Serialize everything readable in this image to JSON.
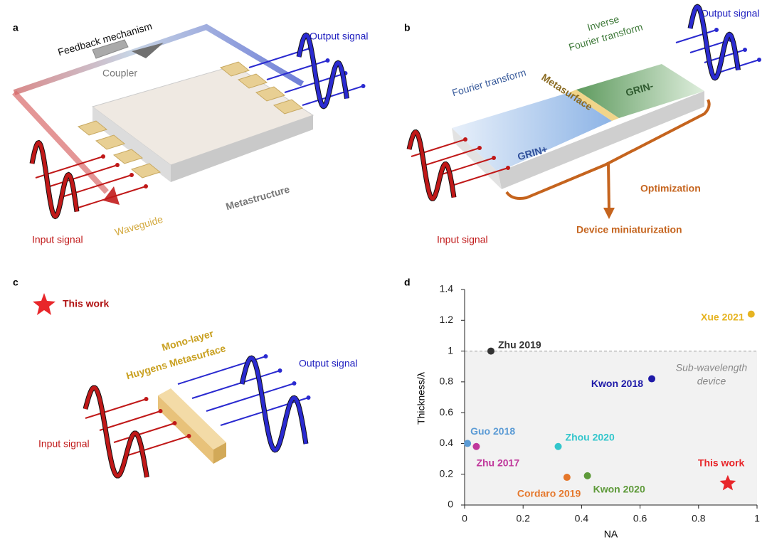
{
  "panels": {
    "a": {
      "label": "a",
      "feedback": "Feedback mechanism",
      "coupler": "Coupler",
      "output": "Output signal",
      "waveguide": "Waveguide",
      "metastructure": "Metastructure",
      "input": "Input signal"
    },
    "b": {
      "label": "b",
      "fourier": "Fourier transform",
      "inverse": [
        "Inverse",
        "Fourier transform"
      ],
      "metasurface": "Metasurface",
      "grin_plus": "GRIN+",
      "grin_minus": "GRIN-",
      "output": "Output signal",
      "optimization": "Optimization",
      "miniaturization": "Device miniaturization",
      "input": "Input signal"
    },
    "c": {
      "label": "c",
      "legend": "This work",
      "device": [
        "Mono-layer",
        "Huygens Metasurface"
      ],
      "output": "Output signal",
      "input": "Input signal"
    },
    "d": {
      "label": "d"
    }
  },
  "chart_data": {
    "type": "scatter",
    "xlabel": "NA",
    "ylabel": "Thickness/λ",
    "xlim": [
      0,
      1
    ],
    "xticks": [
      0,
      0.2,
      0.4,
      0.6,
      0.8,
      1
    ],
    "ylim": [
      0,
      1.4
    ],
    "yticks": [
      0,
      0.2,
      0.4,
      0.6,
      0.8,
      1,
      1.2,
      1.4
    ],
    "reference_line": 1,
    "annotation": [
      "Sub-wavelength",
      "device"
    ],
    "series": [
      {
        "name": "Xue 2021",
        "color": "#e6b422",
        "x": [
          0.98
        ],
        "y": [
          1.24
        ]
      },
      {
        "name": "Zhu 2019",
        "color": "#333333",
        "x": [
          0.09
        ],
        "y": [
          1.0
        ]
      },
      {
        "name": "Kwon 2018",
        "color": "#1f1aa8",
        "x": [
          0.64
        ],
        "y": [
          0.82
        ]
      },
      {
        "name": "Guo 2018",
        "color": "#5b9bd5",
        "x": [
          0.01
        ],
        "y": [
          0.4
        ]
      },
      {
        "name": "Zhu 2017",
        "color": "#c0389c",
        "x": [
          0.04
        ],
        "y": [
          0.38
        ]
      },
      {
        "name": "Zhou 2020",
        "color": "#33c6cc",
        "x": [
          0.32
        ],
        "y": [
          0.38
        ]
      },
      {
        "name": "Cordaro 2019",
        "color": "#e5772b",
        "x": [
          0.35
        ],
        "y": [
          0.18
        ]
      },
      {
        "name": "Kwon 2020",
        "color": "#5e9a3a",
        "x": [
          0.42
        ],
        "y": [
          0.19
        ]
      },
      {
        "name": "This work",
        "color": "#e8262a",
        "x": [
          0.9
        ],
        "y": [
          0.14
        ],
        "marker": "star"
      }
    ]
  }
}
